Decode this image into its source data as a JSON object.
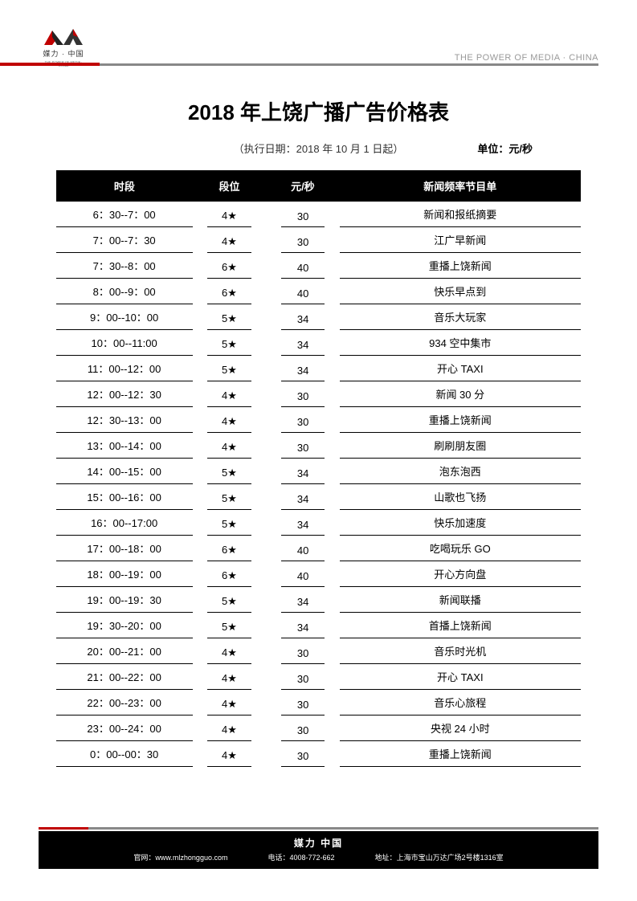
{
  "header": {
    "tagline": "THE POWER OF MEDIA · CHINA",
    "logo_text": "媒力 · 中国",
    "logo_sub": "THE POWER OF MEDIA · CHINA"
  },
  "title": "2018 年上饶广播广告价格表",
  "effective_date": "（执行日期：2018 年 10 月 1 日起）",
  "unit_label": "单位：元/秒",
  "columns": [
    "时段",
    "段位",
    "元/秒",
    "新闻频率节目单"
  ],
  "rows": [
    {
      "time": "6：30--7：00",
      "tier": "4★",
      "price": "30",
      "program": "新闻和报纸摘要"
    },
    {
      "time": "7：00--7：30",
      "tier": "4★",
      "price": "30",
      "program": "江广早新闻"
    },
    {
      "time": "7：30--8：00",
      "tier": "6★",
      "price": "40",
      "program": "重播上饶新闻"
    },
    {
      "time": "8：00--9：00",
      "tier": "6★",
      "price": "40",
      "program": "快乐早点到"
    },
    {
      "time": "9：00--10：00",
      "tier": "5★",
      "price": "34",
      "program": "音乐大玩家"
    },
    {
      "time": "10：00--11:00",
      "tier": "5★",
      "price": "34",
      "program": "934 空中集市"
    },
    {
      "time": "11：00--12：00",
      "tier": "5★",
      "price": "34",
      "program": "开心 TAXI"
    },
    {
      "time": "12：00--12：30",
      "tier": "4★",
      "price": "30",
      "program": "新闻 30 分"
    },
    {
      "time": "12：30--13：00",
      "tier": "4★",
      "price": "30",
      "program": "重播上饶新闻"
    },
    {
      "time": "13：00--14：00",
      "tier": "4★",
      "price": "30",
      "program": "刷刷朋友圈"
    },
    {
      "time": "14：00--15：00",
      "tier": "5★",
      "price": "34",
      "program": "泡东泡西"
    },
    {
      "time": "15：00--16：00",
      "tier": "5★",
      "price": "34",
      "program": "山歌也飞扬"
    },
    {
      "time": "16：00--17:00",
      "tier": "5★",
      "price": "34",
      "program": "快乐加速度"
    },
    {
      "time": "17：00--18：00",
      "tier": "6★",
      "price": "40",
      "program": "吃喝玩乐 GO"
    },
    {
      "time": "18：00--19：00",
      "tier": "6★",
      "price": "40",
      "program": "开心方向盘"
    },
    {
      "time": "19：00--19：30",
      "tier": "5★",
      "price": "34",
      "program": "新闻联播"
    },
    {
      "time": "19：30--20：00",
      "tier": "5★",
      "price": "34",
      "program": "首播上饶新闻"
    },
    {
      "time": "20：00--21：00",
      "tier": "4★",
      "price": "30",
      "program": "音乐时光机"
    },
    {
      "time": "21：00--22：00",
      "tier": "4★",
      "price": "30",
      "program": "开心 TAXI"
    },
    {
      "time": "22：00--23：00",
      "tier": "4★",
      "price": "30",
      "program": "音乐心旅程"
    },
    {
      "time": "23：00--24：00",
      "tier": "4★",
      "price": "30",
      "program": "央视 24 小时"
    },
    {
      "time": "0：00--00：30",
      "tier": "4★",
      "price": "30",
      "program": "重播上饶新闻"
    }
  ],
  "footer": {
    "brand": "媒力  中国",
    "website_label": "官网：",
    "website": "www.mlzhongguo.com",
    "phone_label": "电话：",
    "phone": "4008-772-662",
    "address_label": "地址：",
    "address": "上海市宝山万达广场2号楼1316室"
  },
  "colors": {
    "accent_red": "#c00000",
    "header_gray": "#888888",
    "text_gray": "#999999",
    "black": "#000000",
    "white": "#ffffff"
  }
}
